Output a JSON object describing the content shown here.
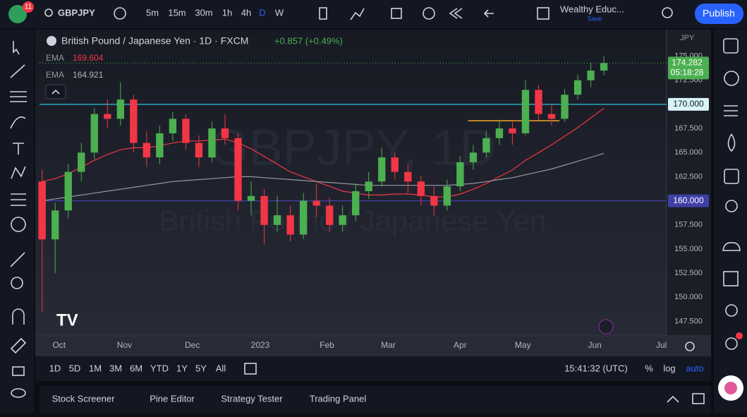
{
  "toolbar": {
    "alert_count": 11,
    "symbol": "GBPJPY",
    "intervals": [
      "5m",
      "15m",
      "30m",
      "1h",
      "4h",
      "D",
      "W"
    ],
    "layout_name": "Wealthy Educ...",
    "save": "Save",
    "publish": "Publish"
  },
  "chart_data": {
    "type": "candlestick",
    "title": "British Pound / Japanese Yen · 1D · FXCM",
    "change": "+0.857 (+0.49%)",
    "currency": "JPY",
    "watermark": [
      "GBPJPY, 1D",
      "British Pound / Japanese Yen"
    ],
    "categories": [
      null,
      null,
      null,
      null,
      null,
      null,
      null,
      null,
      null,
      null,
      null,
      null,
      null,
      null,
      null,
      null,
      null,
      null,
      null,
      null,
      null,
      null,
      null,
      null,
      null,
      null,
      null,
      null,
      null,
      null,
      null,
      null,
      null,
      null,
      null,
      null,
      null,
      null,
      null,
      null,
      null,
      null,
      null,
      null
    ],
    "open": [
      162,
      156,
      159,
      163,
      165,
      169,
      168.5,
      170.5,
      166,
      164.5,
      167,
      168.5,
      166,
      164.5,
      167.5,
      166.5,
      160,
      160.5,
      157.5,
      158.5,
      156.5,
      160,
      159.5,
      157.5,
      158.5,
      161,
      162,
      164.5,
      163,
      162,
      160.5,
      159.5,
      161.5,
      164,
      165,
      166.5,
      167.5,
      167,
      171.5,
      169,
      168.5,
      171,
      172.5,
      173.5
    ],
    "high": [
      163.2,
      159.8,
      163.8,
      166,
      169.6,
      170.5,
      172.3,
      171,
      167.2,
      167.8,
      169.2,
      169,
      166.8,
      168.2,
      169,
      167,
      162,
      161.2,
      160.5,
      159.5,
      160.8,
      161.8,
      160.3,
      159.5,
      161.8,
      163,
      165.5,
      165,
      163.8,
      162.6,
      161.5,
      162.2,
      164.6,
      165.8,
      167.3,
      168.3,
      168.2,
      172.5,
      172,
      170,
      171.6,
      173.1,
      174.3,
      175
    ],
    "low": [
      148.5,
      152.5,
      158.2,
      162,
      164.3,
      167.5,
      167.8,
      165,
      163.5,
      163.8,
      166.2,
      165.3,
      163.5,
      164,
      165.8,
      159,
      158.5,
      155.5,
      156.8,
      155.8,
      156,
      158.3,
      156.8,
      156.8,
      157.9,
      160.2,
      161.5,
      162.2,
      160.8,
      159.5,
      158.5,
      159,
      161,
      163.2,
      164.5,
      165.8,
      165.8,
      166.8,
      168.3,
      167.8,
      168.2,
      170.5,
      171.8,
      173
    ],
    "close": [
      156,
      159,
      163,
      165,
      169,
      168.5,
      170.5,
      166,
      164.5,
      167,
      168.5,
      166,
      164.5,
      167.5,
      166.5,
      160,
      160.5,
      157.5,
      158.5,
      156.5,
      160,
      159.5,
      157.5,
      158.5,
      161,
      162,
      164.5,
      163,
      162,
      160.5,
      159.5,
      161.5,
      164,
      165,
      166.5,
      167.5,
      167,
      171.5,
      169,
      168.5,
      171,
      172.5,
      173.5,
      174.282
    ],
    "up_color": "#4caf50",
    "down_color": "#f23645",
    "series": [
      {
        "name": "EMA",
        "legend_value": "169.604",
        "color": "#f23645",
        "values": [
          162,
          162.3,
          162.8,
          163.5,
          164.2,
          164.8,
          165.3,
          165.5,
          165.5,
          165.7,
          166,
          166.2,
          166.2,
          166.3,
          166.4,
          166,
          165.4,
          164.6,
          163.8,
          163,
          162.5,
          162,
          161.5,
          161,
          160.8,
          160.6,
          160.6,
          160.7,
          160.7,
          160.6,
          160.4,
          160.4,
          160.7,
          161.2,
          161.8,
          162.5,
          163.2,
          164.2,
          165,
          165.8,
          166.7,
          167.6,
          168.6,
          169.604
        ]
      },
      {
        "name": "EMA",
        "legend_value": "164.921",
        "color": "#9598a1",
        "values": [
          160,
          160.2,
          160.4,
          160.6,
          160.8,
          161,
          161.2,
          161.4,
          161.6,
          161.8,
          162,
          162.1,
          162.2,
          162.3,
          162.4,
          162.5,
          162.5,
          162.4,
          162.3,
          162.2,
          162.1,
          162,
          161.9,
          161.8,
          161.7,
          161.6,
          161.6,
          161.6,
          161.6,
          161.6,
          161.6,
          161.6,
          161.7,
          161.8,
          162,
          162.2,
          162.4,
          162.7,
          163,
          163.3,
          163.7,
          164.1,
          164.5,
          164.921
        ]
      }
    ],
    "xlim": [
      -0.2,
      47.8
    ],
    "xticks": [
      {
        "value": 1.3,
        "label": "Oct"
      },
      {
        "value": 6.3,
        "label": "Nov"
      },
      {
        "value": 11.5,
        "label": "Dec"
      },
      {
        "value": 16.7,
        "label": "2023"
      },
      {
        "value": 21.8,
        "label": "Feb"
      },
      {
        "value": 26.5,
        "label": "Mar"
      },
      {
        "value": 32,
        "label": "Apr"
      },
      {
        "value": 36.8,
        "label": "May"
      },
      {
        "value": 42.3,
        "label": "Jun"
      },
      {
        "value": 47.4,
        "label": "Jul"
      }
    ],
    "ylim": [
      146,
      177.6
    ],
    "yticks": [
      {
        "value": 175,
        "label": "175.000"
      },
      {
        "value": 172.5,
        "label": "172.500"
      },
      {
        "value": 167.5,
        "label": "167.500"
      },
      {
        "value": 165,
        "label": "165.000"
      },
      {
        "value": 162.5,
        "label": "162.500"
      },
      {
        "value": 157.5,
        "label": "157.500"
      },
      {
        "value": 155,
        "label": "155.000"
      },
      {
        "value": 152.5,
        "label": "152.500"
      },
      {
        "value": 150,
        "label": "150.000"
      },
      {
        "value": 147.5,
        "label": "147.500"
      }
    ],
    "grid": false,
    "levels": [
      {
        "value": 170,
        "label": "170.000",
        "color": "#26c6da"
      },
      {
        "value": 160,
        "label": "160.000",
        "color": "#3f3fa8"
      }
    ],
    "segments": [
      {
        "value": 168.3,
        "x": [
          32.6,
          39.6
        ],
        "color": "#f5a623"
      }
    ],
    "last_price": {
      "value": 174.282,
      "label": "174.282",
      "countdown": "05:18:28",
      "color": "#4caf50"
    }
  },
  "bottom_bar": {
    "ranges": [
      "1D",
      "5D",
      "1M",
      "3M",
      "6M",
      "YTD",
      "1Y",
      "5Y",
      "All"
    ],
    "clock": "15:41:32 (UTC)",
    "percent": "%",
    "log": "log",
    "auto": "auto"
  },
  "panel_tabs": [
    "Stock Screener",
    "Pine Editor",
    "Strategy Tester",
    "Trading Panel"
  ]
}
